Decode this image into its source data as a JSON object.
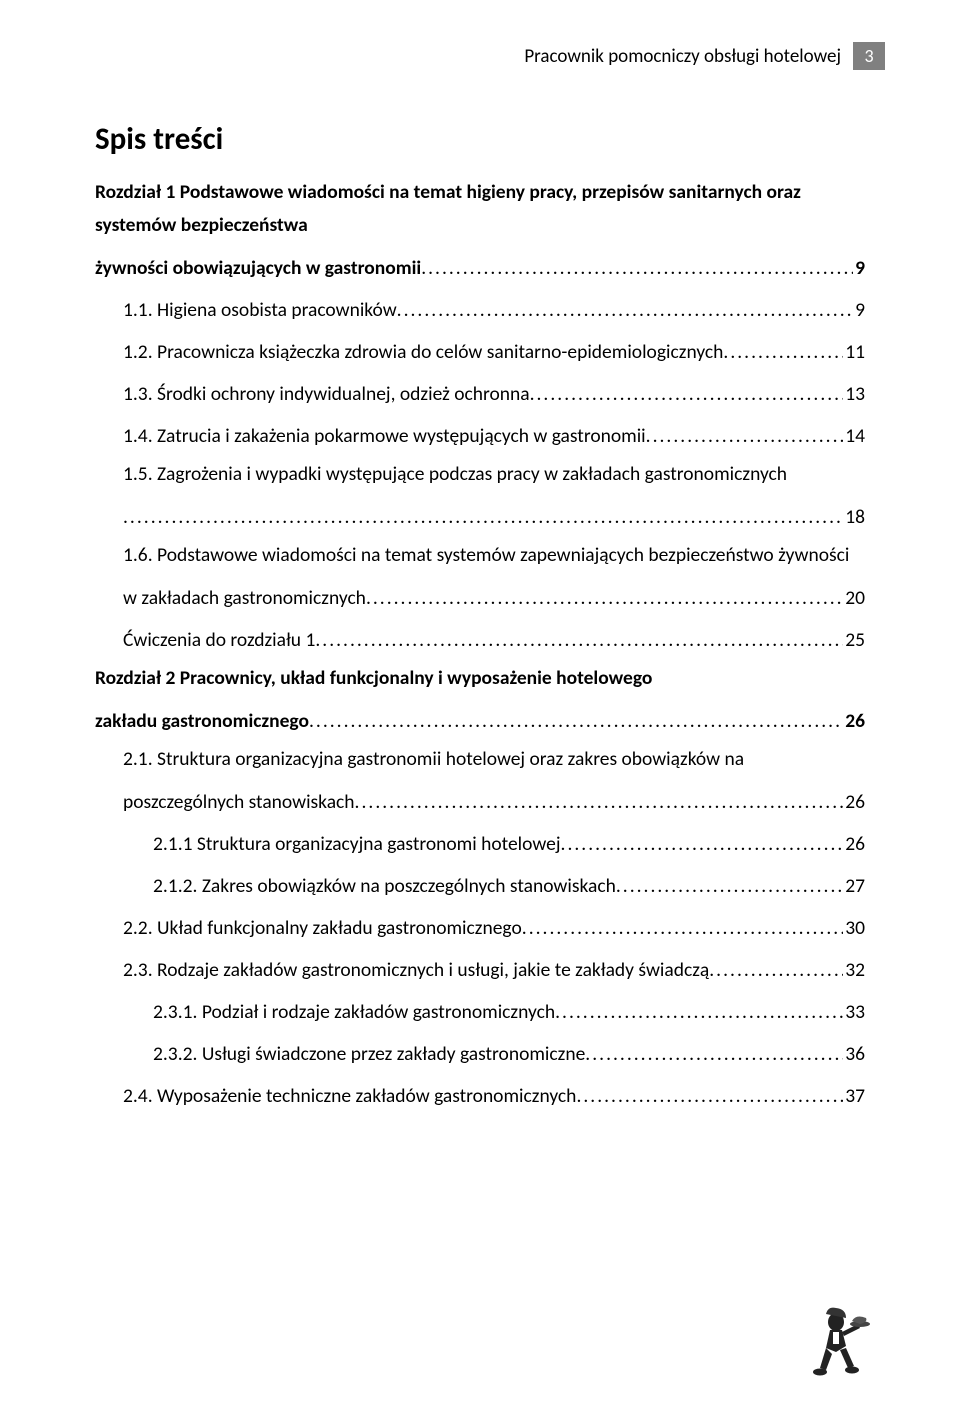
{
  "header": {
    "title": "Pracownik pomocniczy obsługi hotelowej",
    "page_number": "3"
  },
  "title": "Spis treści",
  "entries": [
    {
      "text": "Rozdział 1 Podstawowe wiadomości na temat higieny pracy, przepisów sanitarnych oraz systemów bezpieczeństwa żywności obowiązujących w gastronomii",
      "page": "9",
      "bold": true,
      "indent": 0,
      "multiline": true
    },
    {
      "text": "1.1. Higiena osobista pracowników",
      "page": "9",
      "bold": false,
      "indent": 1
    },
    {
      "text": "1.2. Pracownicza książeczka zdrowia do celów sanitarno-epidemiologicznych",
      "page": "11",
      "bold": false,
      "indent": 1
    },
    {
      "text": "1.3. Środki ochrony indywidualnej, odzież ochronna",
      "page": "13",
      "bold": false,
      "indent": 1
    },
    {
      "text": "1.4. Zatrucia i zakażenia pokarmowe występujących w gastronomii",
      "page": "14",
      "bold": false,
      "indent": 1
    },
    {
      "text": "1.5. Zagrożenia i wypadki występujące podczas pracy w zakładach gastronomicznych",
      "page": "18",
      "bold": false,
      "indent": 1,
      "multiline": true,
      "dots_on_new_line": true
    },
    {
      "text": "1.6. Podstawowe wiadomości na temat systemów zapewniających bezpieczeństwo żywności w zakładach gastronomicznych",
      "page": "20",
      "bold": false,
      "indent": 1,
      "multiline": true
    },
    {
      "text": "Ćwiczenia do rozdziału 1",
      "page": "25",
      "bold": false,
      "indent": 1
    },
    {
      "text": "Rozdział 2 Pracownicy, układ funkcjonalny i wyposażenie hotelowego zakładu gastronomicznego",
      "page": "26",
      "bold": true,
      "indent": 0,
      "multiline": true
    },
    {
      "text": "2.1. Struktura organizacyjna gastronomii hotelowej oraz zakres obowiązków na poszczególnych stanowiskach",
      "page": "26",
      "bold": false,
      "indent": 1,
      "multiline": true
    },
    {
      "text": "2.1.1 Struktura organizacyjna gastronomi hotelowej",
      "page": "26",
      "bold": false,
      "indent": 2
    },
    {
      "text": "2.1.2. Zakres obowiązków na poszczególnych stanowiskach",
      "page": "27",
      "bold": false,
      "indent": 2
    },
    {
      "text": "2.2. Układ funkcjonalny zakładu gastronomicznego",
      "page": "30",
      "bold": false,
      "indent": 1
    },
    {
      "text": "2.3. Rodzaje zakładów gastronomicznych i usługi, jakie te zakłady świadczą",
      "page": "32",
      "bold": false,
      "indent": 1
    },
    {
      "text": "2.3.1. Podział i rodzaje zakładów gastronomicznych",
      "page": "33",
      "bold": false,
      "indent": 2
    },
    {
      "text": "2.3.2. Usługi świadczone przez zakłady gastronomiczne",
      "page": "36",
      "bold": false,
      "indent": 2
    },
    {
      "text": "2.4. Wyposażenie techniczne zakładów gastronomicznych",
      "page": "37",
      "bold": false,
      "indent": 1
    }
  ],
  "colors": {
    "text": "#000000",
    "background": "#ffffff",
    "page_badge_bg": "#808080",
    "page_badge_text": "#ffffff"
  },
  "typography": {
    "body_fontsize": 19.5,
    "title_fontsize": 31,
    "header_fontsize": 19
  }
}
